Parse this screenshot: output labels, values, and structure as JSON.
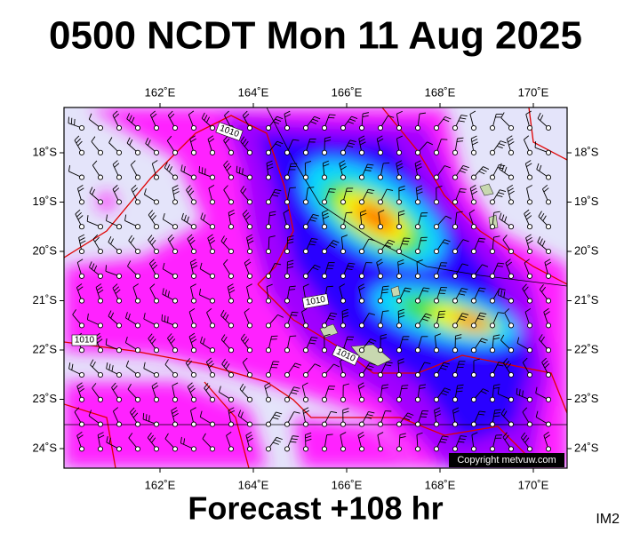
{
  "title": "0500 NCDT Mon 11 Aug 2025",
  "subtitle": "Forecast +108 hr",
  "corner_label": "IM2",
  "copyright": "Copyright metvuw.com",
  "map": {
    "lon_ticks": [
      {
        "value": 162,
        "label": "162˚E"
      },
      {
        "value": 164,
        "label": "164˚E"
      },
      {
        "value": 166,
        "label": "166˚E"
      },
      {
        "value": 168,
        "label": "168˚E"
      },
      {
        "value": 170,
        "label": "170˚E"
      }
    ],
    "lat_ticks": [
      {
        "value": -18,
        "label": "18˚S"
      },
      {
        "value": -19,
        "label": "19˚S"
      },
      {
        "value": -20,
        "label": "20˚S"
      },
      {
        "value": -21,
        "label": "21˚S"
      },
      {
        "value": -22,
        "label": "22˚S"
      },
      {
        "value": -23,
        "label": "23˚S"
      },
      {
        "value": -24,
        "label": "24˚S"
      }
    ],
    "isobar_labels": [
      "1010",
      "1010",
      "1010",
      "1010"
    ]
  }
}
